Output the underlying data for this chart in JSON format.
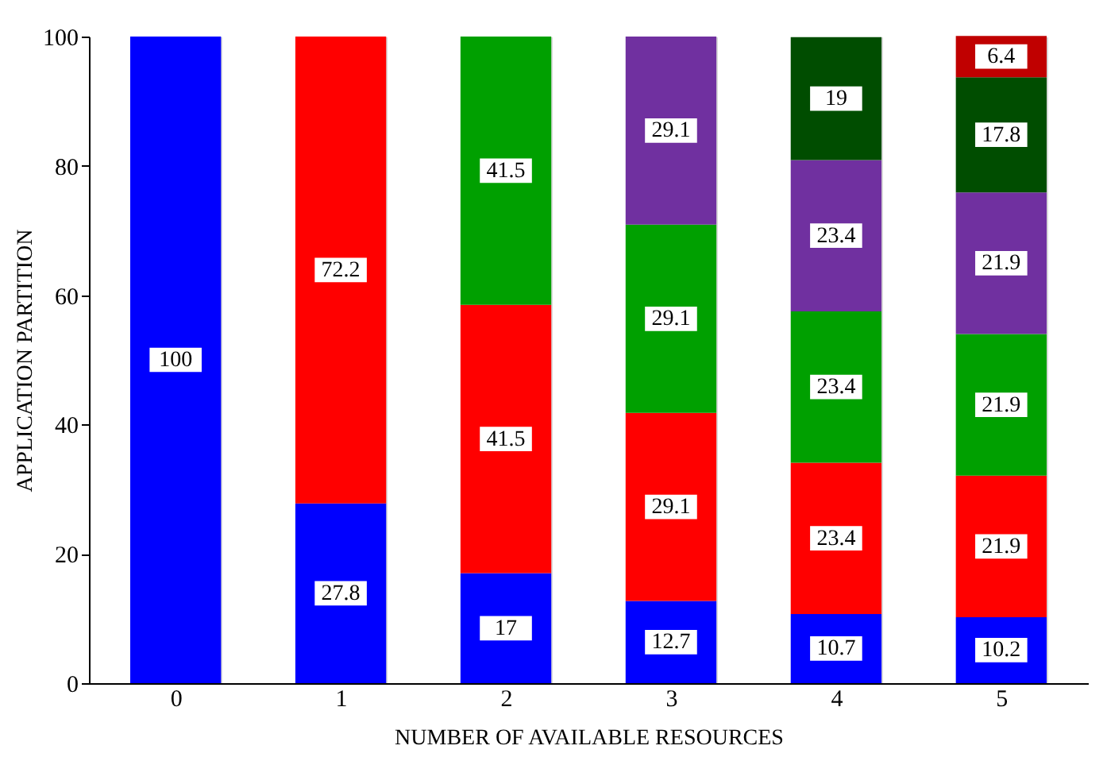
{
  "chart_data": {
    "type": "bar",
    "stacked": true,
    "xlabel": "NUMBER OF AVAILABLE RESOURCES",
    "ylabel": "APPLICATION PARTITION",
    "categories": [
      "0",
      "1",
      "2",
      "3",
      "4",
      "5"
    ],
    "series": [
      {
        "color": "#0000ff",
        "values": [
          100,
          27.8,
          17,
          12.7,
          10.7,
          10.2
        ]
      },
      {
        "color": "#ff0000",
        "values": [
          null,
          72.2,
          41.5,
          29.1,
          23.4,
          21.9
        ]
      },
      {
        "color": "#00a000",
        "values": [
          null,
          null,
          41.5,
          29.1,
          23.4,
          21.9
        ]
      },
      {
        "color": "#7030a0",
        "values": [
          null,
          null,
          null,
          29.1,
          23.4,
          21.9
        ]
      },
      {
        "color": "#004d00",
        "values": [
          null,
          null,
          null,
          null,
          19,
          17.8
        ]
      },
      {
        "color": "#c00000",
        "values": [
          null,
          null,
          null,
          null,
          null,
          6.4
        ]
      }
    ],
    "ylim": [
      0,
      100
    ],
    "yticks": [
      0,
      20,
      40,
      60,
      80,
      100
    ],
    "grid": "x",
    "data_labels": true
  }
}
